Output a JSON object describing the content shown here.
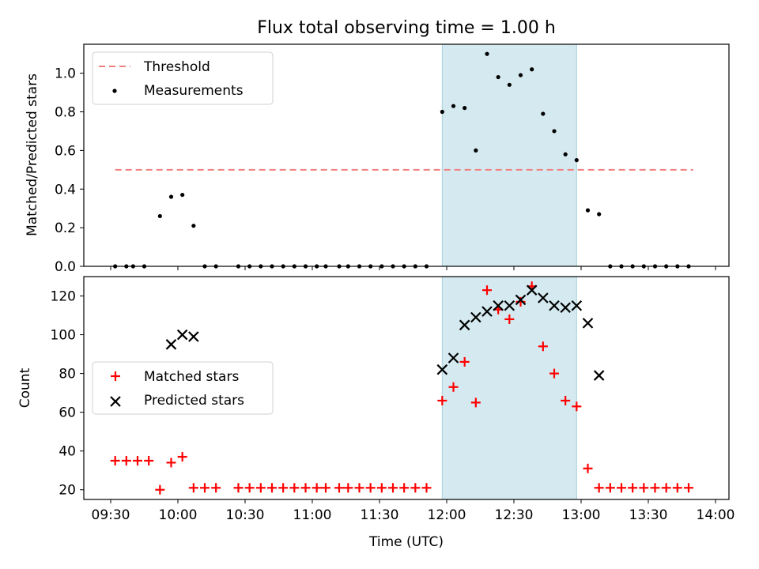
{
  "chart_data": {
    "title": "Flux total observing time = 1.00 h",
    "xlabel": "Time (UTC)",
    "xticks": [
      "09:30",
      "10:00",
      "10:30",
      "11:00",
      "11:30",
      "12:00",
      "12:30",
      "13:00",
      "13:30",
      "14:00"
    ],
    "shaded_span": {
      "start": "11:58",
      "end": "12:58",
      "color": "#d4eaf0"
    },
    "panels": [
      {
        "type": "scatter",
        "ylabel": "Matched/Predicted stars",
        "ylim": [
          0,
          1.15
        ],
        "yticks": [
          "0.0",
          "0.2",
          "0.4",
          "0.6",
          "0.8",
          "1.0"
        ],
        "legend": "top-left",
        "threshold": {
          "name": "Threshold",
          "value": 0.5,
          "x_start": "09:32",
          "x_end": "13:50",
          "color": "#f08080"
        },
        "series": [
          {
            "name": "Measurements",
            "color": "#000000",
            "marker": "dot",
            "points": [
              [
                "09:32",
                0
              ],
              [
                "09:37",
                0
              ],
              [
                "09:40",
                0
              ],
              [
                "09:45",
                0
              ],
              [
                "09:52",
                0.26
              ],
              [
                "09:57",
                0.36
              ],
              [
                "10:02",
                0.37
              ],
              [
                "10:07",
                0.21
              ],
              [
                "10:12",
                0
              ],
              [
                "10:17",
                0
              ],
              [
                "10:27",
                0
              ],
              [
                "10:32",
                0
              ],
              [
                "10:37",
                0
              ],
              [
                "10:42",
                0
              ],
              [
                "10:47",
                0
              ],
              [
                "10:52",
                0
              ],
              [
                "10:57",
                0
              ],
              [
                "11:02",
                0
              ],
              [
                "11:06",
                0
              ],
              [
                "11:12",
                0
              ],
              [
                "11:16",
                0
              ],
              [
                "11:21",
                0
              ],
              [
                "11:26",
                0
              ],
              [
                "11:31",
                0
              ],
              [
                "11:36",
                0
              ],
              [
                "11:41",
                0
              ],
              [
                "11:46",
                0
              ],
              [
                "11:51",
                0
              ],
              [
                "11:58",
                0.8
              ],
              [
                "12:03",
                0.83
              ],
              [
                "12:08",
                0.82
              ],
              [
                "12:13",
                0.6
              ],
              [
                "12:18",
                1.1
              ],
              [
                "12:23",
                0.98
              ],
              [
                "12:28",
                0.94
              ],
              [
                "12:33",
                0.99
              ],
              [
                "12:38",
                1.02
              ],
              [
                "12:43",
                0.79
              ],
              [
                "12:48",
                0.7
              ],
              [
                "12:53",
                0.58
              ],
              [
                "12:58",
                0.55
              ],
              [
                "13:03",
                0.29
              ],
              [
                "13:08",
                0.27
              ],
              [
                "13:13",
                0
              ],
              [
                "13:18",
                0
              ],
              [
                "13:23",
                0
              ],
              [
                "13:28",
                0
              ],
              [
                "13:33",
                0
              ],
              [
                "13:38",
                0
              ],
              [
                "13:43",
                0
              ],
              [
                "13:48",
                0
              ]
            ]
          }
        ]
      },
      {
        "type": "scatter",
        "ylabel": "Count",
        "ylim": [
          15,
          130
        ],
        "yticks": [
          "20",
          "40",
          "60",
          "80",
          "100",
          "120"
        ],
        "legend": "center-left",
        "series": [
          {
            "name": "Matched stars",
            "color": "#ff0000",
            "marker": "plus",
            "points": [
              [
                "09:32",
                35
              ],
              [
                "09:37",
                35
              ],
              [
                "09:42",
                35
              ],
              [
                "09:47",
                35
              ],
              [
                "09:52",
                20
              ],
              [
                "09:57",
                34
              ],
              [
                "10:02",
                37
              ],
              [
                "10:07",
                21
              ],
              [
                "10:12",
                21
              ],
              [
                "10:17",
                21
              ],
              [
                "10:27",
                21
              ],
              [
                "10:32",
                21
              ],
              [
                "10:37",
                21
              ],
              [
                "10:42",
                21
              ],
              [
                "10:47",
                21
              ],
              [
                "10:52",
                21
              ],
              [
                "10:57",
                21
              ],
              [
                "11:02",
                21
              ],
              [
                "11:06",
                21
              ],
              [
                "11:12",
                21
              ],
              [
                "11:16",
                21
              ],
              [
                "11:21",
                21
              ],
              [
                "11:26",
                21
              ],
              [
                "11:31",
                21
              ],
              [
                "11:36",
                21
              ],
              [
                "11:41",
                21
              ],
              [
                "11:46",
                21
              ],
              [
                "11:51",
                21
              ],
              [
                "11:58",
                66
              ],
              [
                "12:03",
                73
              ],
              [
                "12:08",
                86
              ],
              [
                "12:13",
                65
              ],
              [
                "12:18",
                123
              ],
              [
                "12:23",
                113
              ],
              [
                "12:28",
                108
              ],
              [
                "12:33",
                117
              ],
              [
                "12:38",
                125
              ],
              [
                "12:43",
                94
              ],
              [
                "12:48",
                80
              ],
              [
                "12:53",
                66
              ],
              [
                "12:58",
                63
              ],
              [
                "13:03",
                31
              ],
              [
                "13:08",
                21
              ],
              [
                "13:13",
                21
              ],
              [
                "13:18",
                21
              ],
              [
                "13:23",
                21
              ],
              [
                "13:28",
                21
              ],
              [
                "13:33",
                21
              ],
              [
                "13:38",
                21
              ],
              [
                "13:43",
                21
              ],
              [
                "13:48",
                21
              ]
            ]
          },
          {
            "name": "Predicted stars",
            "color": "#000000",
            "marker": "x",
            "points": [
              [
                "09:57",
                95
              ],
              [
                "10:02",
                100
              ],
              [
                "10:07",
                99
              ],
              [
                "11:58",
                82
              ],
              [
                "12:03",
                88
              ],
              [
                "12:08",
                105
              ],
              [
                "12:13",
                109
              ],
              [
                "12:18",
                112
              ],
              [
                "12:23",
                115
              ],
              [
                "12:28",
                115
              ],
              [
                "12:33",
                118
              ],
              [
                "12:38",
                123
              ],
              [
                "12:43",
                119
              ],
              [
                "12:48",
                115
              ],
              [
                "12:53",
                114
              ],
              [
                "12:58",
                115
              ],
              [
                "13:03",
                106
              ],
              [
                "13:08",
                79
              ]
            ]
          }
        ]
      }
    ]
  }
}
